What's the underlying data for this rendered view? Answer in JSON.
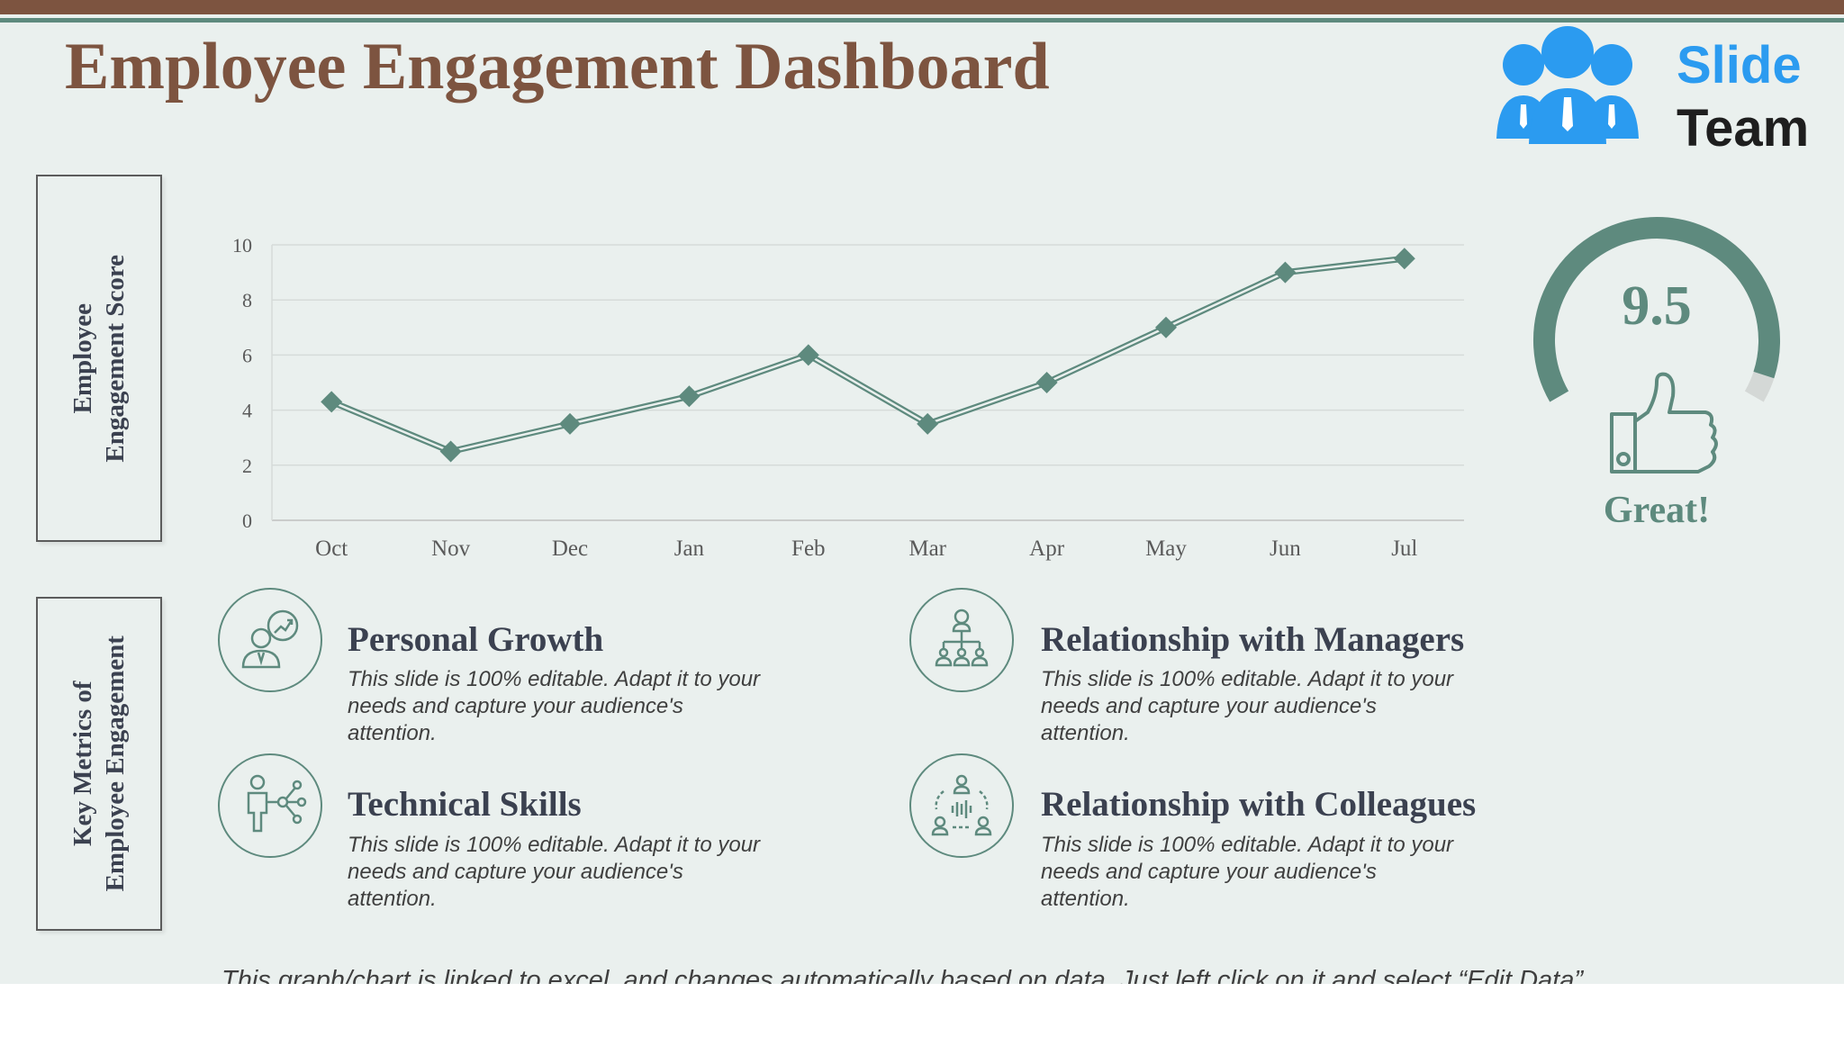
{
  "title": "Employee Engagement Dashboard",
  "logo": {
    "line1": "Slide",
    "line2": "Team"
  },
  "side_labels": {
    "score": [
      "Employee",
      "Engagement Score"
    ],
    "metrics": [
      "Key Metrics of",
      "Employee Engagement"
    ]
  },
  "chart_data": {
    "type": "line",
    "categories": [
      "Oct",
      "Nov",
      "Dec",
      "Jan",
      "Feb",
      "Mar",
      "Apr",
      "May",
      "Jun",
      "Jul"
    ],
    "values": [
      4.3,
      2.5,
      3.5,
      4.5,
      6.0,
      3.5,
      5.0,
      7.0,
      9.0,
      9.5
    ],
    "yticks": [
      0,
      2,
      4,
      6,
      8,
      10
    ],
    "ylim": [
      0,
      10
    ],
    "grid": true,
    "marker": "diamond",
    "color": "#5e8a7e"
  },
  "gauge": {
    "value": "9.5",
    "fraction": 0.95,
    "label": "Great!"
  },
  "metrics": [
    {
      "title": "Personal Growth",
      "desc": "This slide is 100% editable. Adapt it to your needs and capture your audience's attention.",
      "icon": "person-growth-icon"
    },
    {
      "title": "Relationship with Managers",
      "desc": "This slide is 100% editable. Adapt it to your needs and capture your audience's attention.",
      "icon": "org-hierarchy-icon"
    },
    {
      "title": "Technical Skills",
      "desc": "This slide is 100% editable. Adapt it to your needs and capture your audience's attention.",
      "icon": "person-network-icon"
    },
    {
      "title": "Relationship with Colleagues",
      "desc": "This slide is 100% editable. Adapt it to your needs and capture your audience's attention.",
      "icon": "team-communication-icon"
    }
  ],
  "footer": "This graph/chart is linked to excel, and changes automatically based on data. Just left click on it and select “Edit Data”.",
  "colors": {
    "accent": "#5e8a7e",
    "brand": "#7d5440",
    "text": "#3b4150",
    "logo_blue": "#2b9bf0",
    "background": "#eaf0ee"
  }
}
